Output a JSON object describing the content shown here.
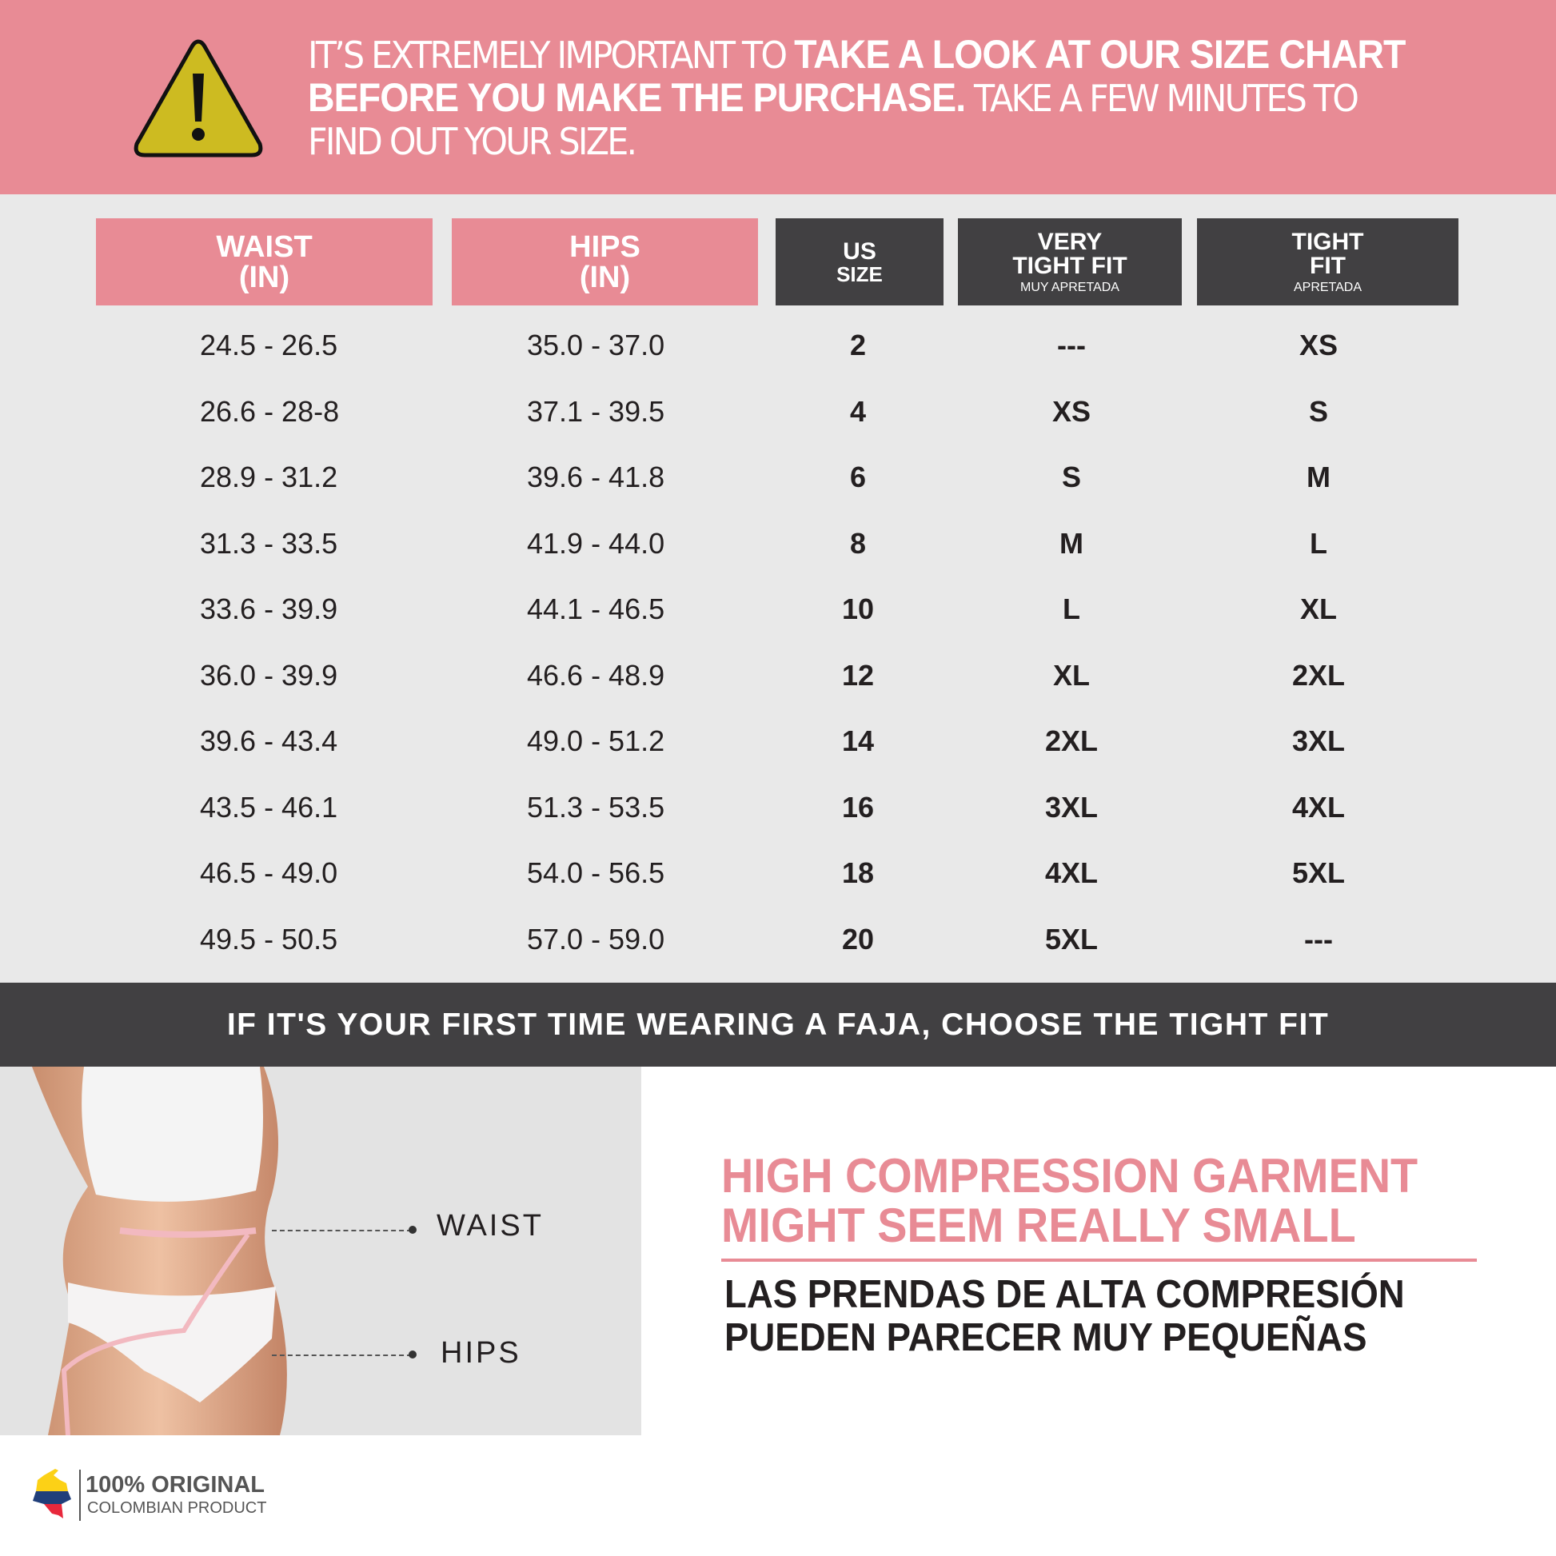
{
  "notice": {
    "light1": "IT’S EXTREMELY IMPORTANT TO ",
    "bold1": "TAKE A LOOK AT OUR SIZE CHART BEFORE YOU MAKE THE PURCHASE.",
    "light2": " TAKE A FEW MINUTES TO FIND OUT YOUR SIZE.",
    "icon": "warning-triangle-icon",
    "colors": {
      "banner": "#e88b95",
      "icon_fill": "#cdbb21"
    }
  },
  "table": {
    "headers": [
      {
        "title": "WAIST",
        "sub": "(IN)"
      },
      {
        "title": "HIPS",
        "sub": "(IN)"
      },
      {
        "title": "US",
        "sub": "SIZE"
      },
      {
        "title": "VERY\nTIGHT FIT",
        "note": "MUY APRETADA"
      },
      {
        "title": "TIGHT\nFIT",
        "note": "APRETADA"
      }
    ],
    "rows": [
      [
        "24.5 - 26.5",
        "35.0 - 37.0",
        "2",
        "---",
        "XS"
      ],
      [
        "26.6 - 28-8",
        "37.1 - 39.5",
        "4",
        "XS",
        "S"
      ],
      [
        "28.9 - 31.2",
        "39.6 - 41.8",
        "6",
        "S",
        "M"
      ],
      [
        "31.3 - 33.5",
        "41.9 - 44.0",
        "8",
        "M",
        "L"
      ],
      [
        "33.6 - 39.9",
        "44.1 - 46.5",
        "10",
        "L",
        "XL"
      ],
      [
        "36.0 - 39.9",
        "46.6 - 48.9",
        "12",
        "XL",
        "2XL"
      ],
      [
        "39.6 - 43.4",
        "49.0 - 51.2",
        "14",
        "2XL",
        "3XL"
      ],
      [
        "43.5 - 46.1",
        "51.3 - 53.5",
        "16",
        "3XL",
        "4XL"
      ],
      [
        "46.5 - 49.0",
        "54.0 - 56.5",
        "18",
        "4XL",
        "5XL"
      ],
      [
        "49.5 - 50.5",
        "57.0 - 59.0",
        "20",
        "5XL",
        "---"
      ]
    ]
  },
  "tip": "IF IT'S YOUR FIRST TIME WEARING A FAJA, CHOOSE THE TIGHT FIT",
  "measure": {
    "waist": "WAIST",
    "hips": "HIPS"
  },
  "warning_en": {
    "line1": "HIGH COMPRESSION GARMENT",
    "line2": "MIGHT SEEM REALLY SMALL"
  },
  "warning_es": {
    "line1": "LAS PRENDAS DE ALTA COMPRESIÓN",
    "line2": "PUEDEN PARECER MUY PEQUEÑAS"
  },
  "logo": {
    "title": "100% ORIGINAL",
    "subtitle": "COLOMBIAN PRODUCT",
    "icon": "colombia-map-icon"
  }
}
